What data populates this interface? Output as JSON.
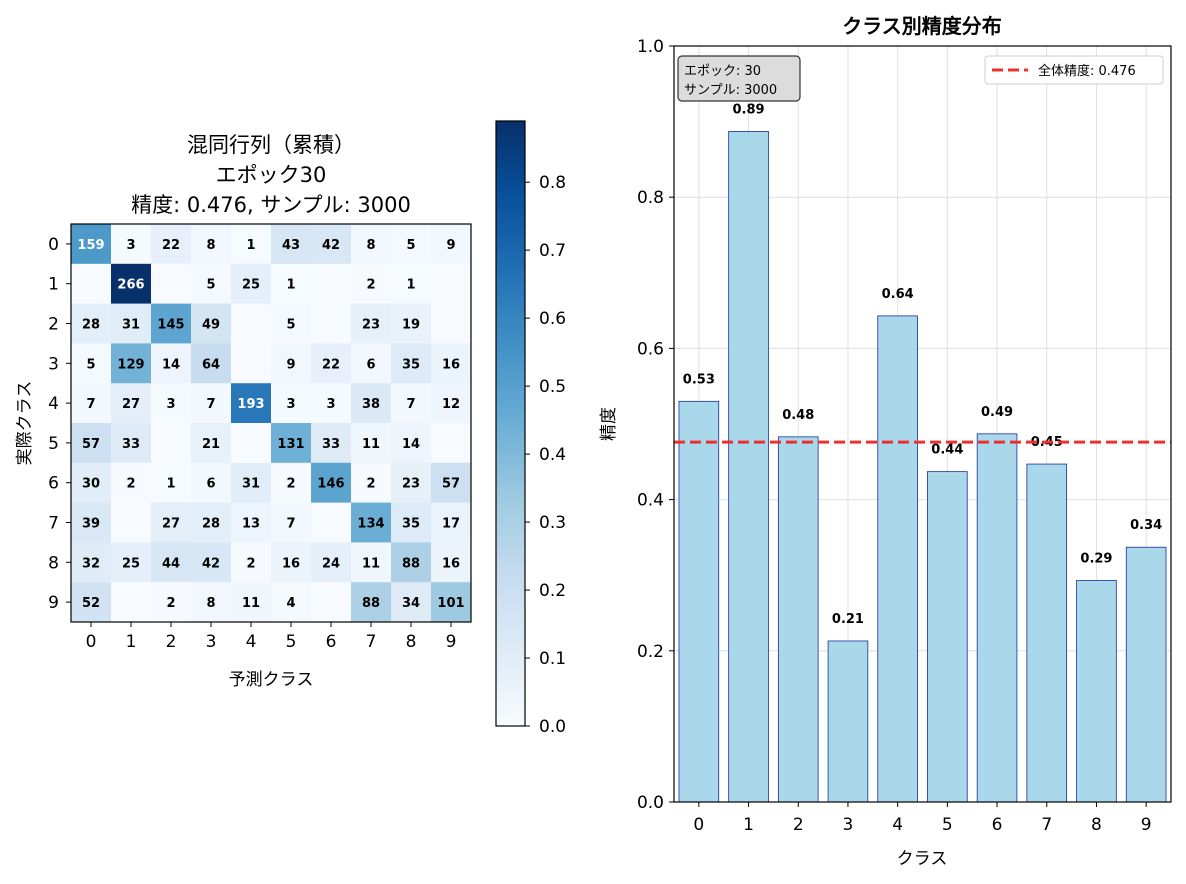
{
  "chart_data": [
    {
      "type": "heatmap",
      "title": [
        "混同行列（累積）",
        "エポック30",
        "精度: 0.476, サンプル: 3000"
      ],
      "xlabel": "予測クラス",
      "ylabel": "実際クラス",
      "x_ticks": [
        "0",
        "1",
        "2",
        "3",
        "4",
        "5",
        "6",
        "7",
        "8",
        "9"
      ],
      "y_ticks": [
        "0",
        "1",
        "2",
        "3",
        "4",
        "5",
        "6",
        "7",
        "8",
        "9"
      ],
      "matrix": [
        [
          159,
          3,
          22,
          8,
          1,
          43,
          42,
          8,
          5,
          9
        ],
        [
          0,
          266,
          0,
          5,
          25,
          1,
          0,
          2,
          1,
          0
        ],
        [
          28,
          31,
          145,
          49,
          0,
          5,
          0,
          23,
          19,
          0
        ],
        [
          5,
          129,
          14,
          64,
          0,
          9,
          22,
          6,
          35,
          16
        ],
        [
          7,
          27,
          3,
          7,
          193,
          3,
          3,
          38,
          7,
          12
        ],
        [
          57,
          33,
          0,
          21,
          0,
          131,
          33,
          11,
          14,
          0
        ],
        [
          30,
          2,
          1,
          6,
          31,
          2,
          146,
          2,
          23,
          57
        ],
        [
          39,
          0,
          27,
          28,
          13,
          7,
          0,
          134,
          35,
          17
        ],
        [
          32,
          25,
          44,
          42,
          2,
          16,
          24,
          11,
          88,
          16
        ],
        [
          52,
          0,
          2,
          8,
          11,
          4,
          0,
          88,
          34,
          101
        ]
      ],
      "colorbar": {
        "range": [
          0,
          0.89
        ],
        "ticks": [
          0.0,
          0.1,
          0.2,
          0.3,
          0.4,
          0.5,
          0.6,
          0.7,
          0.8
        ],
        "tick_labels": [
          "0.0",
          "0.1",
          "0.2",
          "0.3",
          "0.4",
          "0.5",
          "0.6",
          "0.7",
          "0.8"
        ]
      },
      "colormap": "Blues"
    },
    {
      "type": "bar",
      "title": "クラス別精度分布",
      "xlabel": "クラス",
      "ylabel": "精度",
      "categories": [
        "0",
        "1",
        "2",
        "3",
        "4",
        "5",
        "6",
        "7",
        "8",
        "9"
      ],
      "values": [
        0.53,
        0.887,
        0.483,
        0.213,
        0.643,
        0.437,
        0.487,
        0.447,
        0.293,
        0.337
      ],
      "value_labels": [
        "0.53",
        "0.89",
        "0.48",
        "0.21",
        "0.64",
        "0.44",
        "0.49",
        "0.45",
        "0.29",
        "0.34"
      ],
      "ylim": [
        0,
        1.0
      ],
      "y_ticks": [
        0.0,
        0.2,
        0.4,
        0.6,
        0.8,
        1.0
      ],
      "y_tick_labels": [
        "0.0",
        "0.2",
        "0.4",
        "0.6",
        "0.8",
        "1.0"
      ],
      "grid": true,
      "bar_color": "#a8d8ea",
      "bar_edge_color": "#1a2e9c",
      "reference_line": {
        "value": 0.476,
        "label": "全体精度: 0.476",
        "color": "#ee3030",
        "style": "dashed"
      },
      "legend": "top-right",
      "annotation": [
        "エポック: 30",
        "サンプル: 3000"
      ]
    }
  ]
}
